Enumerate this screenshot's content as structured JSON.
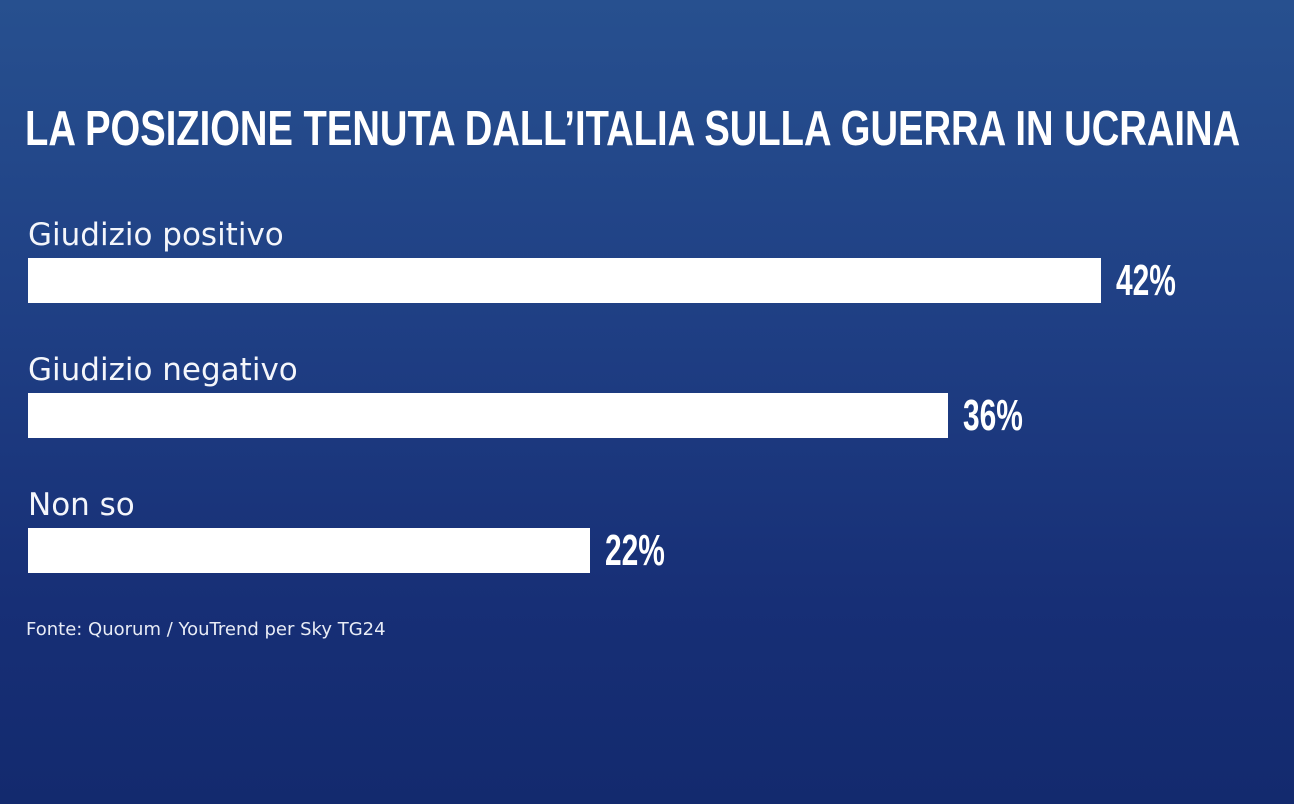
{
  "chart_data": {
    "type": "bar",
    "orientation": "horizontal",
    "title": "LA POSIZIONE TENUTA DALL’ITALIA SULLA GUERRA IN UCRAINA",
    "categories": [
      "Giudizio positivo",
      "Giudizio negativo",
      "Non so"
    ],
    "values": [
      42,
      36,
      22
    ],
    "value_labels": [
      "42%",
      "36%",
      "22%"
    ],
    "unit": "%",
    "grid": false,
    "colors": {
      "bar": "#ffffff",
      "background": "#1f3f84",
      "text": "#ffffff"
    }
  },
  "source": "Fonte: Quorum / YouTrend per Sky TG24"
}
